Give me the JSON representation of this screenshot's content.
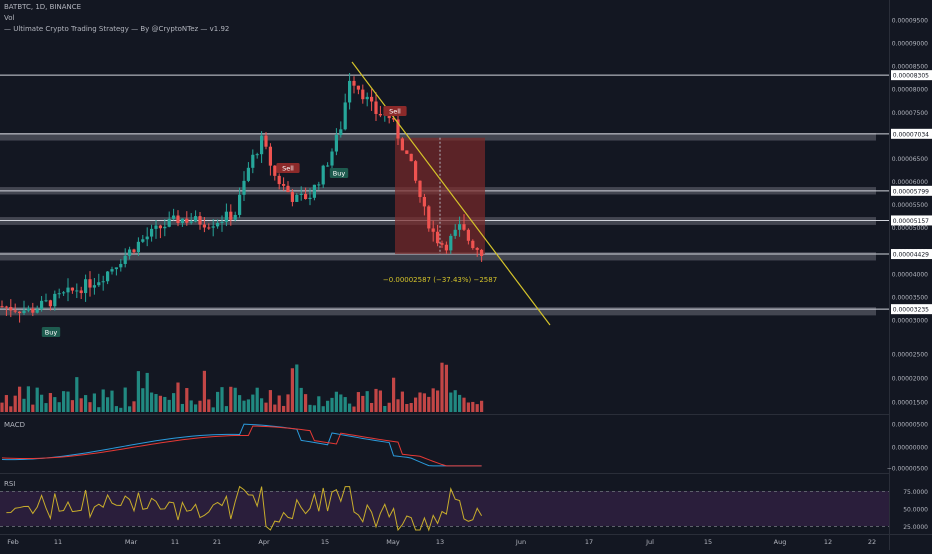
{
  "header": {
    "symbol_line": "BATBTC, 1D, BINANCE",
    "vol_label": "Vol",
    "strategy_label": "— Ultimate Crypto Trading Strategy — By @CryptoNTez — v1.92"
  },
  "colors": {
    "background": "#131722",
    "up": "#26a69a",
    "down": "#ef5350",
    "trendline": "#d4c32a",
    "level_line": "#d1d4dc",
    "zone": "#6b6e78",
    "measure_box": "#7a2a2a",
    "macd": "#2b9bdc",
    "signal": "#e53935",
    "rsi_line": "#c8ad2c",
    "rsi_band": "#2a1e3b"
  },
  "price_axis": {
    "ticks": [
      "0.00009500",
      "0.00009000",
      "0.00008500",
      "0.00008000",
      "0.00007500",
      "0.00007000",
      "0.00006500",
      "0.00006000",
      "0.00005500",
      "0.00005000",
      "0.00004500",
      "0.00004000",
      "0.00003500",
      "0.00003000"
    ],
    "level_labels": [
      "0.00008305",
      "0.00007034",
      "0.00005799",
      "0.00005157",
      "0.00004429",
      "0.00003235"
    ]
  },
  "volume_axis": {
    "ticks": [
      "0.00002500",
      "0.00002000",
      "0.00001500"
    ]
  },
  "macd": {
    "label": "MACD",
    "ticks": [
      "0.00000500",
      "0.00000000",
      "−0.00000500"
    ]
  },
  "rsi": {
    "label": "RSI",
    "ticks": [
      "75.0000",
      "50.0000",
      "25.0000"
    ]
  },
  "time_axis": {
    "labels": [
      "Feb",
      "11",
      "Mar",
      "11",
      "21",
      "Apr",
      "15",
      "May",
      "13",
      "Jun",
      "17",
      "Jul",
      "15",
      "Aug",
      "12",
      "22"
    ]
  },
  "signals": [
    {
      "label": "Buy",
      "type": "buy"
    },
    {
      "label": "Sell",
      "type": "sell"
    },
    {
      "label": "Buy",
      "type": "buy"
    },
    {
      "label": "Sell",
      "type": "sell"
    }
  ],
  "measurement": {
    "text": "−0.00002587 (−37.43%) −2587"
  }
}
